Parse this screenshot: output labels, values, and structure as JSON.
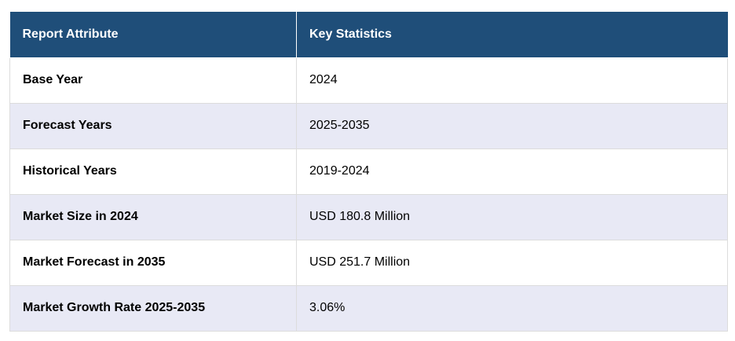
{
  "table": {
    "headers": [
      "Report Attribute",
      "Key Statistics"
    ],
    "rows": [
      {
        "attribute": "Base Year",
        "value": "2024"
      },
      {
        "attribute": "Forecast Years",
        "value": "2025-2035"
      },
      {
        "attribute": "Historical Years",
        "value": "2019-2024"
      },
      {
        "attribute": "Market Size in 2024",
        "value": "USD 180.8 Million"
      },
      {
        "attribute": "Market Forecast in 2035",
        "value": "USD 251.7 Million"
      },
      {
        "attribute": "Market Growth Rate 2025-2035",
        "value": "3.06%"
      }
    ]
  },
  "colors": {
    "header_background": "#1f4e79",
    "header_text": "#ffffff",
    "shaded_row": "#e8e9f5",
    "plain_row": "#ffffff",
    "border": "#dcdcdc"
  }
}
